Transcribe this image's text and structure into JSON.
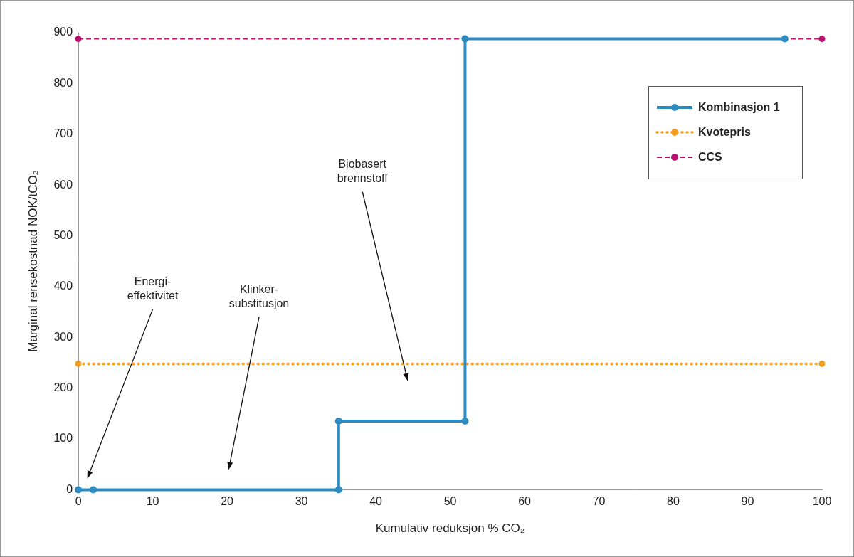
{
  "chart_data": {
    "type": "line",
    "x_label": "Kumulativ reduksjon % CO₂",
    "y_label": "Marginal rensekostnad NOK/tCO₂",
    "series": [
      {
        "name": "Kombinasjon 1",
        "color": "#2e8bc0",
        "x": [
          0,
          2,
          35,
          35,
          52,
          52,
          95
        ],
        "values": [
          0,
          0,
          0,
          135,
          135,
          888,
          888
        ],
        "line_style": "solid",
        "marker": "circle"
      },
      {
        "name": "Kvotepris",
        "color": "#f39c1e",
        "x": [
          0,
          100
        ],
        "values": [
          248,
          248
        ],
        "line_style": "dotted",
        "marker": "circle"
      },
      {
        "name": "CCS",
        "color": "#b8136f",
        "x": [
          0,
          100
        ],
        "values": [
          888,
          888
        ],
        "line_style": "dashed",
        "marker": "circle"
      }
    ],
    "xlim": [
      0,
      100
    ],
    "xticks": [
      0,
      10,
      20,
      30,
      40,
      50,
      60,
      70,
      80,
      90,
      100
    ],
    "ylim": [
      0,
      900
    ],
    "yticks": [
      0,
      100,
      200,
      300,
      400,
      500,
      600,
      700,
      800,
      900
    ],
    "grid": false,
    "legend": "upper right",
    "annotations": [
      {
        "text": "Energi-\neffektivitet",
        "xy": [
          1.2,
          22
        ],
        "xytext": [
          10,
          420
        ]
      },
      {
        "text": "Klinker-\nsubstitusjon",
        "xy": [
          20.2,
          39
        ],
        "xytext": [
          24.3,
          405
        ]
      },
      {
        "text": "Biobasert\nbrennstoff",
        "xy": [
          44.3,
          214
        ],
        "xytext": [
          38.2,
          651
        ]
      }
    ]
  }
}
